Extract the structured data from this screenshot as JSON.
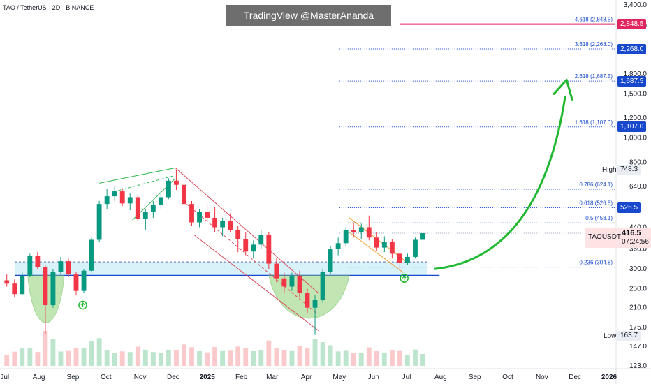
{
  "header": {
    "symbol_title": "TAO / TetherUS · 2D · BINANCE",
    "watermark": "TradingView @MasterAnanda"
  },
  "colors": {
    "bull": "#089981",
    "bear": "#f23645",
    "fib_line": "#1848cc",
    "target_line": "#e0245e",
    "support_line": "#1848cc",
    "support_zone": "#cdeff7",
    "cup_fill": "#a8dc94",
    "arrow": "#20b830"
  },
  "chart_data": {
    "type": "candlestick",
    "title": "TAO / TetherUS · 2D · BINANCE",
    "y_scale": "log",
    "ylim": [
      123,
      3400
    ],
    "y_ticks": [
      3400.0,
      2800.0,
      1800.0,
      1500.0,
      1200.0,
      1000.0,
      800.0,
      640.0,
      440.0,
      360.0,
      300.0,
      250.0,
      210.0,
      175.0,
      147.0,
      123.0
    ],
    "x_ticks": [
      "Jul",
      "Aug",
      "Sep",
      "Oct",
      "Nov",
      "Dec",
      "2025",
      "Feb",
      "Mar",
      "Apr",
      "May",
      "Jun",
      "Jul",
      "Aug",
      "Sep",
      "Oct",
      "Nov",
      "Dec",
      "2026"
    ],
    "fib_levels": [
      {
        "label": "4.618 (2,848.5)",
        "value": 2848.5
      },
      {
        "label": "3.618 (2,268.0)",
        "value": 2268.0
      },
      {
        "label": "2.618 (1,687.5)",
        "value": 1687.5
      },
      {
        "label": "1.618 (1,107.0)",
        "value": 1107.0
      },
      {
        "label": "0.786 (624.1)",
        "value": 624.1
      },
      {
        "label": "0.618 (526.5)",
        "value": 526.5
      },
      {
        "label": "0.5 (458.1)",
        "value": 458.1
      },
      {
        "label": "0.236 (304.8)",
        "value": 304.8
      }
    ],
    "price_badges": [
      {
        "label": "2,848.5",
        "value": 2848.5,
        "style": "pink"
      },
      {
        "label": "2,268.0",
        "value": 2268.0,
        "style": "blue"
      },
      {
        "label": "1,687.5",
        "value": 1687.5,
        "style": "blue"
      },
      {
        "label": "1,107.0",
        "value": 1107.0,
        "style": "blue"
      },
      {
        "label": "526.5",
        "value": 526.5,
        "style": "blue"
      }
    ],
    "high": {
      "label": "High",
      "value": 748.3,
      "text": "748.3"
    },
    "low": {
      "label": "Low",
      "value": 163.7,
      "text": "163.7"
    },
    "last": {
      "symbol": "TAOUSDT",
      "price": 416.5,
      "price_text": "416.5",
      "countdown": "07:24:56"
    },
    "series": [
      {
        "date": "2024-07-01",
        "open": 270,
        "high": 285,
        "low": 255,
        "close": 262
      },
      {
        "date": "2024-07-08",
        "open": 262,
        "high": 272,
        "low": 232,
        "close": 238
      },
      {
        "date": "2024-07-15",
        "open": 238,
        "high": 290,
        "low": 235,
        "close": 282
      },
      {
        "date": "2024-07-22",
        "open": 282,
        "high": 345,
        "low": 278,
        "close": 338
      },
      {
        "date": "2024-07-29",
        "open": 338,
        "high": 350,
        "low": 300,
        "close": 305
      },
      {
        "date": "2024-08-05",
        "open": 305,
        "high": 310,
        "low": 165,
        "close": 215
      },
      {
        "date": "2024-08-12",
        "open": 215,
        "high": 300,
        "low": 210,
        "close": 292
      },
      {
        "date": "2024-08-19",
        "open": 292,
        "high": 335,
        "low": 285,
        "close": 322
      },
      {
        "date": "2024-08-26",
        "open": 322,
        "high": 330,
        "low": 278,
        "close": 285
      },
      {
        "date": "2024-09-02",
        "open": 285,
        "high": 292,
        "low": 235,
        "close": 245
      },
      {
        "date": "2024-09-09",
        "open": 245,
        "high": 300,
        "low": 240,
        "close": 295
      },
      {
        "date": "2024-09-16",
        "open": 295,
        "high": 400,
        "low": 290,
        "close": 392
      },
      {
        "date": "2024-09-23",
        "open": 392,
        "high": 560,
        "low": 385,
        "close": 545
      },
      {
        "date": "2024-09-30",
        "open": 545,
        "high": 625,
        "low": 520,
        "close": 585
      },
      {
        "date": "2024-10-07",
        "open": 585,
        "high": 640,
        "low": 560,
        "close": 612
      },
      {
        "date": "2024-10-14",
        "open": 612,
        "high": 630,
        "low": 535,
        "close": 548
      },
      {
        "date": "2024-10-21",
        "open": 548,
        "high": 600,
        "low": 515,
        "close": 580
      },
      {
        "date": "2024-10-28",
        "open": 580,
        "high": 590,
        "low": 465,
        "close": 475
      },
      {
        "date": "2024-11-04",
        "open": 475,
        "high": 520,
        "low": 430,
        "close": 505
      },
      {
        "date": "2024-11-11",
        "open": 505,
        "high": 560,
        "low": 480,
        "close": 540
      },
      {
        "date": "2024-11-18",
        "open": 540,
        "high": 600,
        "low": 520,
        "close": 580
      },
      {
        "date": "2024-11-25",
        "open": 580,
        "high": 690,
        "low": 570,
        "close": 675
      },
      {
        "date": "2024-12-02",
        "open": 675,
        "high": 748.3,
        "low": 620,
        "close": 650
      },
      {
        "date": "2024-12-09",
        "open": 650,
        "high": 665,
        "low": 505,
        "close": 545
      },
      {
        "date": "2024-12-16",
        "open": 545,
        "high": 560,
        "low": 445,
        "close": 460
      },
      {
        "date": "2024-12-23",
        "open": 460,
        "high": 520,
        "low": 440,
        "close": 505
      },
      {
        "date": "2024-12-30",
        "open": 505,
        "high": 545,
        "low": 470,
        "close": 480
      },
      {
        "date": "2025-01-06",
        "open": 480,
        "high": 530,
        "low": 420,
        "close": 440
      },
      {
        "date": "2025-01-13",
        "open": 440,
        "high": 480,
        "low": 405,
        "close": 465
      },
      {
        "date": "2025-01-20",
        "open": 465,
        "high": 500,
        "low": 420,
        "close": 430
      },
      {
        "date": "2025-01-27",
        "open": 430,
        "high": 445,
        "low": 350,
        "close": 395
      },
      {
        "date": "2025-02-03",
        "open": 395,
        "high": 420,
        "low": 340,
        "close": 352
      },
      {
        "date": "2025-02-10",
        "open": 352,
        "high": 390,
        "low": 330,
        "close": 375
      },
      {
        "date": "2025-02-17",
        "open": 375,
        "high": 430,
        "low": 360,
        "close": 410
      },
      {
        "date": "2025-02-24",
        "open": 410,
        "high": 420,
        "low": 300,
        "close": 315
      },
      {
        "date": "2025-03-03",
        "open": 315,
        "high": 330,
        "low": 265,
        "close": 275
      },
      {
        "date": "2025-03-10",
        "open": 275,
        "high": 290,
        "low": 240,
        "close": 255
      },
      {
        "date": "2025-03-17",
        "open": 255,
        "high": 290,
        "low": 245,
        "close": 280
      },
      {
        "date": "2025-03-24",
        "open": 280,
        "high": 295,
        "low": 230,
        "close": 240
      },
      {
        "date": "2025-03-31",
        "open": 240,
        "high": 250,
        "low": 200,
        "close": 210
      },
      {
        "date": "2025-04-07",
        "open": 210,
        "high": 235,
        "low": 163.7,
        "close": 225
      },
      {
        "date": "2025-04-14",
        "open": 225,
        "high": 300,
        "low": 220,
        "close": 292
      },
      {
        "date": "2025-04-21",
        "open": 292,
        "high": 370,
        "low": 285,
        "close": 360
      },
      {
        "date": "2025-04-28",
        "open": 360,
        "high": 400,
        "low": 340,
        "close": 380
      },
      {
        "date": "2025-05-05",
        "open": 380,
        "high": 440,
        "low": 370,
        "close": 430
      },
      {
        "date": "2025-05-12",
        "open": 430,
        "high": 460,
        "low": 400,
        "close": 420
      },
      {
        "date": "2025-05-19",
        "open": 420,
        "high": 455,
        "low": 395,
        "close": 440
      },
      {
        "date": "2025-05-26",
        "open": 440,
        "high": 490,
        "low": 390,
        "close": 400
      },
      {
        "date": "2025-06-02",
        "open": 400,
        "high": 420,
        "low": 355,
        "close": 365
      },
      {
        "date": "2025-06-09",
        "open": 365,
        "high": 405,
        "low": 350,
        "close": 385
      },
      {
        "date": "2025-06-16",
        "open": 385,
        "high": 395,
        "low": 330,
        "close": 345
      },
      {
        "date": "2025-06-23",
        "open": 345,
        "high": 350,
        "low": 295,
        "close": 318
      },
      {
        "date": "2025-06-30",
        "open": 318,
        "high": 345,
        "low": 310,
        "close": 335
      },
      {
        "date": "2025-07-07",
        "open": 335,
        "high": 400,
        "low": 330,
        "close": 392
      },
      {
        "date": "2025-07-14",
        "open": 392,
        "high": 435,
        "low": 385,
        "close": 416.5
      }
    ]
  }
}
